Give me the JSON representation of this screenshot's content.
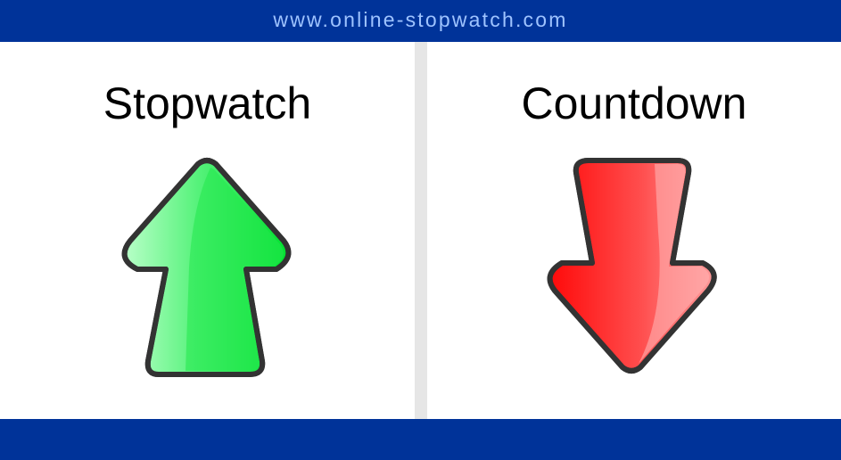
{
  "header": {
    "site_url": "www.online-stopwatch.com"
  },
  "options": {
    "stopwatch": {
      "label": "Stopwatch",
      "icon": "up-arrow-icon",
      "color": "#00e640"
    },
    "countdown": {
      "label": "Countdown",
      "icon": "down-arrow-icon",
      "color": "#ff0000"
    }
  },
  "colors": {
    "brand_bar": "#003399",
    "header_text": "#9ec3ff",
    "divider": "#e6e6e6"
  }
}
